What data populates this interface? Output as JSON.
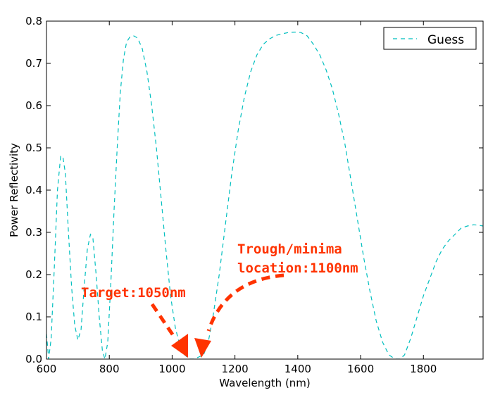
{
  "chart_data": {
    "type": "line",
    "title": "",
    "xlabel": "Wavelength (nm)",
    "ylabel": "Power Reflectivity",
    "xlim": [
      600,
      1990
    ],
    "ylim": [
      0,
      0.8
    ],
    "xticks": [
      "600",
      "800",
      "1000",
      "1200",
      "1400",
      "1600",
      "1800"
    ],
    "yticks": [
      "0.0",
      "0.1",
      "0.2",
      "0.3",
      "0.4",
      "0.5",
      "0.6",
      "0.7",
      "0.8"
    ],
    "grid": false,
    "legend": {
      "placement": "top-right",
      "entries": [
        "Guess"
      ]
    },
    "series": [
      {
        "name": "Guess",
        "color": "#00bfbf",
        "style": "dashed",
        "points": [
          [
            600,
            0.06
          ],
          [
            607,
            0.0
          ],
          [
            615,
            0.05
          ],
          [
            625,
            0.22
          ],
          [
            635,
            0.4
          ],
          [
            645,
            0.48
          ],
          [
            652,
            0.48
          ],
          [
            660,
            0.44
          ],
          [
            670,
            0.3
          ],
          [
            680,
            0.17
          ],
          [
            690,
            0.08
          ],
          [
            700,
            0.045
          ],
          [
            710,
            0.07
          ],
          [
            720,
            0.17
          ],
          [
            730,
            0.26
          ],
          [
            740,
            0.295
          ],
          [
            748,
            0.285
          ],
          [
            758,
            0.2
          ],
          [
            768,
            0.1
          ],
          [
            778,
            0.02
          ],
          [
            786,
            0.0
          ],
          [
            795,
            0.04
          ],
          [
            805,
            0.18
          ],
          [
            815,
            0.35
          ],
          [
            825,
            0.5
          ],
          [
            835,
            0.63
          ],
          [
            845,
            0.71
          ],
          [
            855,
            0.75
          ],
          [
            865,
            0.762
          ],
          [
            878,
            0.765
          ],
          [
            890,
            0.76
          ],
          [
            905,
            0.735
          ],
          [
            920,
            0.68
          ],
          [
            935,
            0.6
          ],
          [
            950,
            0.5
          ],
          [
            965,
            0.38
          ],
          [
            980,
            0.26
          ],
          [
            995,
            0.15
          ],
          [
            1010,
            0.075
          ],
          [
            1025,
            0.03
          ],
          [
            1040,
            0.01
          ],
          [
            1055,
            0.0
          ],
          [
            1070,
            0.0
          ],
          [
            1085,
            0.005
          ],
          [
            1100,
            0.01
          ],
          [
            1115,
            0.04
          ],
          [
            1130,
            0.1
          ],
          [
            1150,
            0.2
          ],
          [
            1170,
            0.32
          ],
          [
            1190,
            0.44
          ],
          [
            1210,
            0.54
          ],
          [
            1230,
            0.62
          ],
          [
            1250,
            0.68
          ],
          [
            1270,
            0.72
          ],
          [
            1290,
            0.745
          ],
          [
            1310,
            0.758
          ],
          [
            1330,
            0.766
          ],
          [
            1350,
            0.77
          ],
          [
            1370,
            0.773
          ],
          [
            1390,
            0.774
          ],
          [
            1410,
            0.773
          ],
          [
            1430,
            0.765
          ],
          [
            1450,
            0.745
          ],
          [
            1470,
            0.72
          ],
          [
            1490,
            0.685
          ],
          [
            1510,
            0.64
          ],
          [
            1530,
            0.58
          ],
          [
            1550,
            0.51
          ],
          [
            1570,
            0.42
          ],
          [
            1590,
            0.33
          ],
          [
            1610,
            0.24
          ],
          [
            1630,
            0.16
          ],
          [
            1650,
            0.09
          ],
          [
            1670,
            0.04
          ],
          [
            1690,
            0.01
          ],
          [
            1710,
            0.0
          ],
          [
            1725,
            0.0
          ],
          [
            1740,
            0.01
          ],
          [
            1760,
            0.05
          ],
          [
            1780,
            0.1
          ],
          [
            1800,
            0.15
          ],
          [
            1820,
            0.19
          ],
          [
            1840,
            0.23
          ],
          [
            1860,
            0.26
          ],
          [
            1880,
            0.28
          ],
          [
            1900,
            0.295
          ],
          [
            1920,
            0.31
          ],
          [
            1940,
            0.315
          ],
          [
            1960,
            0.318
          ],
          [
            1975,
            0.317
          ],
          [
            1990,
            0.315
          ]
        ]
      }
    ],
    "annotations": [
      {
        "id": "target",
        "text": "Target:1050nm",
        "color": "#ff3300"
      },
      {
        "id": "trough",
        "lines": [
          "Trough/minima",
          "location:1100nm"
        ],
        "color": "#ff3300"
      }
    ]
  }
}
